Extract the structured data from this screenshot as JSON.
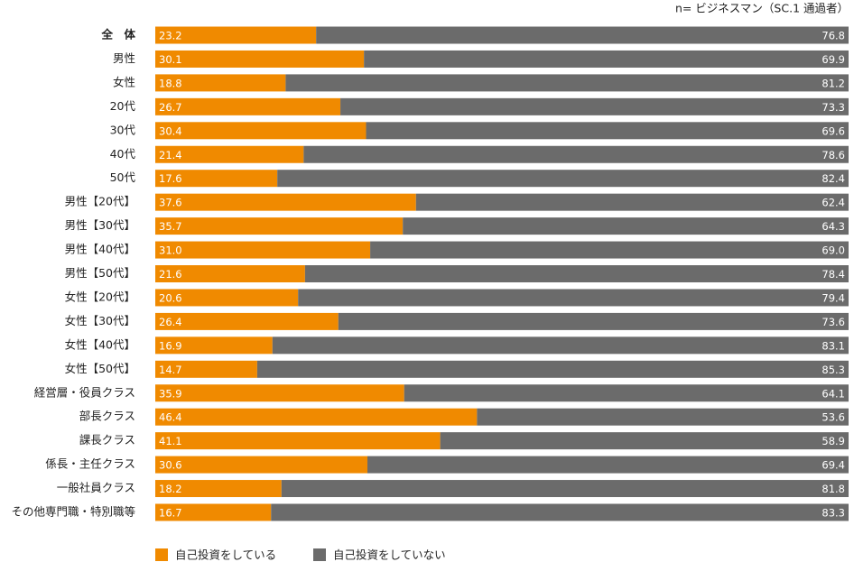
{
  "chart_data": {
    "type": "stacked-bar-horizontal",
    "note": "n= ビジネスマン（SC.1 通過者）",
    "categories": [
      "全　体",
      "男性",
      "女性",
      "20代",
      "30代",
      "40代",
      "50代",
      "男性【20代】",
      "男性【30代】",
      "男性【40代】",
      "男性【50代】",
      "女性【20代】",
      "女性【30代】",
      "女性【40代】",
      "女性【50代】",
      "経営層・役員クラス",
      "部長クラス",
      "課長クラス",
      "係長・主任クラス",
      "一般社員クラス",
      "その他専門職・特別職等"
    ],
    "series": [
      {
        "name": "自己投資をしている",
        "color": "#f08a00",
        "values": [
          23.2,
          30.1,
          18.8,
          26.7,
          30.4,
          21.4,
          17.6,
          37.6,
          35.7,
          31.0,
          21.6,
          20.6,
          26.4,
          16.9,
          14.7,
          35.9,
          46.4,
          41.1,
          30.6,
          18.2,
          16.7
        ],
        "value_labels": [
          "23.2",
          "30.1",
          "18.8",
          "26.7",
          "30.4",
          "21.4",
          "17.6",
          "37.6",
          "35.7",
          "31.0",
          "21.6",
          "20.6",
          "26.4",
          "16.9",
          "14.7",
          "35.9",
          "46.4",
          "41.1",
          "30.6",
          "18.2",
          "16.7"
        ]
      },
      {
        "name": "自己投資をしていない",
        "color": "#6b6b6b",
        "values": [
          76.8,
          69.9,
          81.2,
          73.3,
          69.6,
          78.6,
          82.4,
          62.4,
          64.3,
          69.0,
          78.4,
          79.4,
          73.6,
          83.1,
          85.3,
          64.1,
          53.6,
          58.9,
          69.4,
          81.8,
          83.3
        ],
        "value_labels": [
          "76.8",
          "69.9",
          "81.2",
          "73.3",
          "69.6",
          "78.6",
          "82.4",
          "62.4",
          "64.3",
          "69.0",
          "78.4",
          "79.4",
          "73.6",
          "83.1",
          "85.3",
          "64.1",
          "53.6",
          "58.9",
          "69.4",
          "81.8",
          "83.3"
        ]
      }
    ]
  }
}
